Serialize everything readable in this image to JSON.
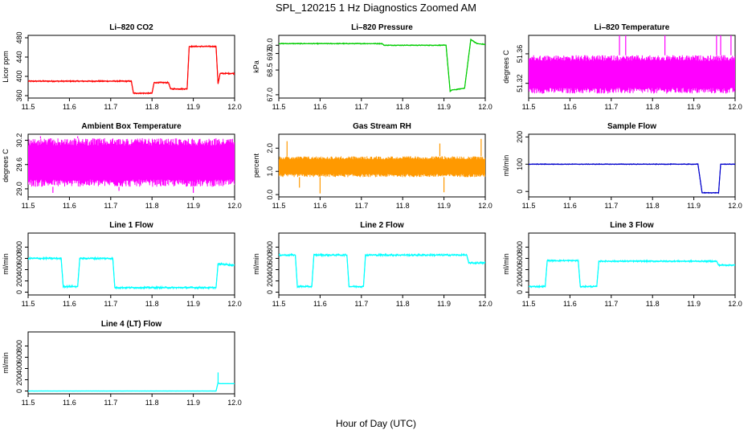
{
  "figure": {
    "title": "SPL_120215  1 Hz Diagnostics Zoomed AM",
    "xlabel": "Hour of Day (UTC)"
  },
  "chart_data": [
    {
      "type": "line",
      "title": "Li–820 CO2",
      "ylabel": "Licor ppm",
      "color": "#ff0000",
      "xlim": [
        11.5,
        12.0
      ],
      "ylim": [
        355,
        485
      ],
      "xticks": [
        "11.5",
        "11.6",
        "11.7",
        "11.8",
        "11.9",
        "12.0"
      ],
      "yticks": [
        "360",
        "400",
        "440",
        "480"
      ],
      "noise": 1.5,
      "spikes": [],
      "x": [
        11.5,
        11.75,
        11.755,
        11.8,
        11.805,
        11.84,
        11.845,
        11.885,
        11.89,
        11.955,
        11.96,
        11.965,
        12.0
      ],
      "y": [
        390,
        390,
        365,
        365,
        387,
        387,
        374,
        374,
        462,
        462,
        385,
        406,
        406
      ]
    },
    {
      "type": "line",
      "title": "Li–820 Pressure",
      "ylabel": "kPa",
      "color": "#00cc00",
      "xlim": [
        11.5,
        12.0
      ],
      "ylim": [
        66.8,
        70.6
      ],
      "xticks": [
        "11.5",
        "11.6",
        "11.7",
        "11.8",
        "11.9",
        "12.0"
      ],
      "yticks": [
        "67.0",
        "68.5",
        "69.5",
        "70.0"
      ],
      "noise": 0.03,
      "spikes": [],
      "x": [
        11.5,
        11.75,
        11.755,
        11.905,
        11.915,
        11.92,
        11.925,
        11.95,
        11.965,
        11.98,
        12.0
      ],
      "y": [
        70.1,
        70.1,
        70.0,
        70.0,
        67.2,
        67.3,
        67.3,
        67.4,
        70.35,
        70.1,
        70.05
      ]
    },
    {
      "type": "line",
      "title": "Li–820 Temperature",
      "ylabel": "degrees C",
      "color": "#ff00ff",
      "xlim": [
        11.5,
        12.0
      ],
      "ylim": [
        51.3,
        51.385
      ],
      "xticks": [
        "11.5",
        "11.6",
        "11.7",
        "11.8",
        "11.9",
        "12.0"
      ],
      "yticks": [
        "51.32",
        "51.36"
      ],
      "noise": 0,
      "band": [
        51.306,
        51.358
      ],
      "spikes": [
        {
          "x": 11.72,
          "y": 51.385
        },
        {
          "x": 11.735,
          "y": 51.385
        },
        {
          "x": 11.83,
          "y": 51.385
        },
        {
          "x": 11.955,
          "y": 51.385
        },
        {
          "x": 11.965,
          "y": 51.385
        },
        {
          "x": 11.99,
          "y": 51.385
        }
      ],
      "x": [
        11.5,
        12.0
      ],
      "y": [
        51.33,
        51.33
      ]
    },
    {
      "type": "line",
      "title": "Ambient Box Temperature",
      "ylabel": "degrees C",
      "color": "#ff00ff",
      "xlim": [
        11.5,
        12.0
      ],
      "ylim": [
        28.8,
        30.35
      ],
      "xticks": [
        "11.5",
        "11.6",
        "11.7",
        "11.8",
        "11.9",
        "12.0"
      ],
      "yticks": [
        "29.0",
        "29.6",
        "30.2"
      ],
      "noise": 0,
      "band": [
        29.05,
        30.25
      ],
      "spikes": [
        {
          "x": 11.56,
          "y": 28.9
        },
        {
          "x": 11.72,
          "y": 28.95
        },
        {
          "x": 11.9,
          "y": 28.9
        },
        {
          "x": 11.53,
          "y": 30.3
        },
        {
          "x": 11.62,
          "y": 30.3
        }
      ],
      "x": [
        11.5,
        12.0
      ],
      "y": [
        29.6,
        29.6
      ]
    },
    {
      "type": "line",
      "title": "Gas Stream RH",
      "ylabel": "percent",
      "color": "#ff9900",
      "xlim": [
        11.5,
        12.0
      ],
      "ylim": [
        -0.1,
        2.6
      ],
      "xticks": [
        "11.5",
        "11.6",
        "11.7",
        "11.8",
        "11.9",
        "12.0"
      ],
      "yticks": [
        "0.0",
        "1.0",
        "2.0"
      ],
      "noise": 0,
      "band": [
        0.75,
        1.65
      ],
      "spikes": [
        {
          "x": 11.52,
          "y": 2.3
        },
        {
          "x": 11.55,
          "y": 0.3
        },
        {
          "x": 11.6,
          "y": 0.05
        },
        {
          "x": 11.89,
          "y": 2.2
        },
        {
          "x": 11.9,
          "y": 0.1
        },
        {
          "x": 11.99,
          "y": 2.4
        }
      ],
      "x": [
        11.5,
        12.0
      ],
      "y": [
        1.2,
        1.2
      ]
    },
    {
      "type": "line",
      "title": "Sample Flow",
      "ylabel": "ml/min",
      "color": "#0000cc",
      "xlim": [
        11.5,
        12.0
      ],
      "ylim": [
        -20,
        210
      ],
      "xticks": [
        "11.5",
        "11.6",
        "11.7",
        "11.8",
        "11.9",
        "12.0"
      ],
      "yticks": [
        "0",
        "100",
        "200"
      ],
      "noise": 1.5,
      "spikes": [],
      "x": [
        11.5,
        11.91,
        11.92,
        11.96,
        11.965,
        12.0
      ],
      "y": [
        100,
        100,
        -5,
        -5,
        100,
        100
      ]
    },
    {
      "type": "line",
      "title": "Line 1 Flow",
      "ylabel": "ml/min",
      "color": "#00ffff",
      "xlim": [
        11.5,
        12.0
      ],
      "ylim": [
        -50,
        1050
      ],
      "xticks": [
        "11.5",
        "11.6",
        "11.7",
        "11.8",
        "11.9",
        "12.0"
      ],
      "yticks": [
        "0",
        "200",
        "400",
        "600",
        "800"
      ],
      "noise": 18,
      "spikes": [],
      "x": [
        11.5,
        11.58,
        11.585,
        11.62,
        11.625,
        11.705,
        11.71,
        11.955,
        11.96,
        11.965,
        12.0
      ],
      "y": [
        600,
        600,
        100,
        100,
        600,
        600,
        80,
        80,
        500,
        500,
        480
      ]
    },
    {
      "type": "line",
      "title": "Line 2 Flow",
      "ylabel": "ml/min",
      "color": "#00ffff",
      "xlim": [
        11.5,
        12.0
      ],
      "ylim": [
        -50,
        1050
      ],
      "xticks": [
        "11.5",
        "11.6",
        "11.7",
        "11.8",
        "11.9",
        "12.0"
      ],
      "yticks": [
        "0",
        "200",
        "400",
        "600",
        "800"
      ],
      "noise": 18,
      "spikes": [],
      "x": [
        11.5,
        11.54,
        11.545,
        11.58,
        11.585,
        11.665,
        11.67,
        11.705,
        11.71,
        11.955,
        11.96,
        12.0
      ],
      "y": [
        660,
        660,
        100,
        100,
        660,
        660,
        100,
        100,
        660,
        660,
        520,
        520
      ]
    },
    {
      "type": "line",
      "title": "Line 3 Flow",
      "ylabel": "ml/min",
      "color": "#00ffff",
      "xlim": [
        11.5,
        12.0
      ],
      "ylim": [
        -50,
        1050
      ],
      "xticks": [
        "11.5",
        "11.6",
        "11.7",
        "11.8",
        "11.9",
        "12.0"
      ],
      "yticks": [
        "0",
        "200",
        "400",
        "600",
        "800"
      ],
      "noise": 15,
      "spikes": [],
      "x": [
        11.5,
        11.54,
        11.545,
        11.62,
        11.625,
        11.665,
        11.67,
        11.955,
        11.96,
        12.0
      ],
      "y": [
        100,
        100,
        560,
        560,
        100,
        100,
        550,
        550,
        480,
        480
      ]
    },
    {
      "type": "line",
      "title": "Line 4 (LT) Flow",
      "ylabel": "ml/min",
      "color": "#00ffff",
      "xlim": [
        11.5,
        12.0
      ],
      "ylim": [
        -50,
        1050
      ],
      "xticks": [
        "11.5",
        "11.6",
        "11.7",
        "11.8",
        "11.9",
        "12.0"
      ],
      "yticks": [
        "0",
        "200",
        "400",
        "600",
        "800"
      ],
      "noise": 2,
      "spikes": [
        {
          "x": 11.96,
          "y": 330
        }
      ],
      "x": [
        11.5,
        11.955,
        11.96,
        11.963,
        12.0
      ],
      "y": [
        0,
        0,
        150,
        130,
        130
      ]
    }
  ]
}
